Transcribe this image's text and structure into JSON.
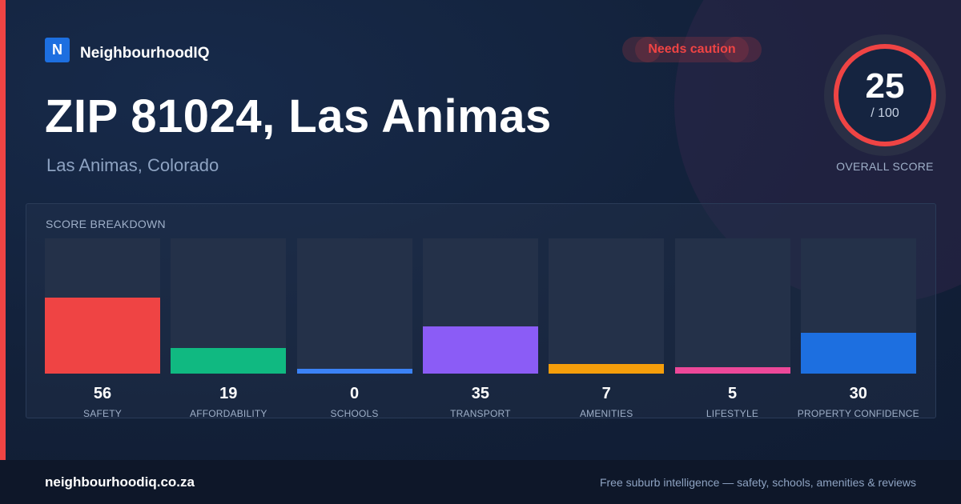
{
  "brand": {
    "logo_letter": "N",
    "name": "NeighbourhoodIQ"
  },
  "badge": {
    "label": "Needs caution",
    "color": "#ef4444"
  },
  "header": {
    "title": "ZIP 81024, Las Animas",
    "subtitle": "Las Animas, Colorado"
  },
  "overall": {
    "score": "25",
    "max": "/ 100",
    "label": "OVERALL SCORE",
    "value": 25,
    "ring_color": "#ef4444"
  },
  "breakdown": {
    "title": "SCORE BREAKDOWN",
    "items": [
      {
        "label": "SAFETY",
        "value": 56,
        "color": "#ef4444"
      },
      {
        "label": "AFFORDABILITY",
        "value": 19,
        "color": "#10b981"
      },
      {
        "label": "SCHOOLS",
        "value": 0,
        "color": "#3b82f6"
      },
      {
        "label": "TRANSPORT",
        "value": 35,
        "color": "#8b5cf6"
      },
      {
        "label": "AMENITIES",
        "value": 7,
        "color": "#f59e0b"
      },
      {
        "label": "LIFESTYLE",
        "value": 5,
        "color": "#ec4899"
      },
      {
        "label": "PROPERTY CONFIDENCE",
        "value": 30,
        "color": "#1d6fe0"
      }
    ]
  },
  "footer": {
    "site": "neighbourhoodiq.co.za",
    "tagline": "Free suburb intelligence — safety, schools, amenities & reviews"
  }
}
